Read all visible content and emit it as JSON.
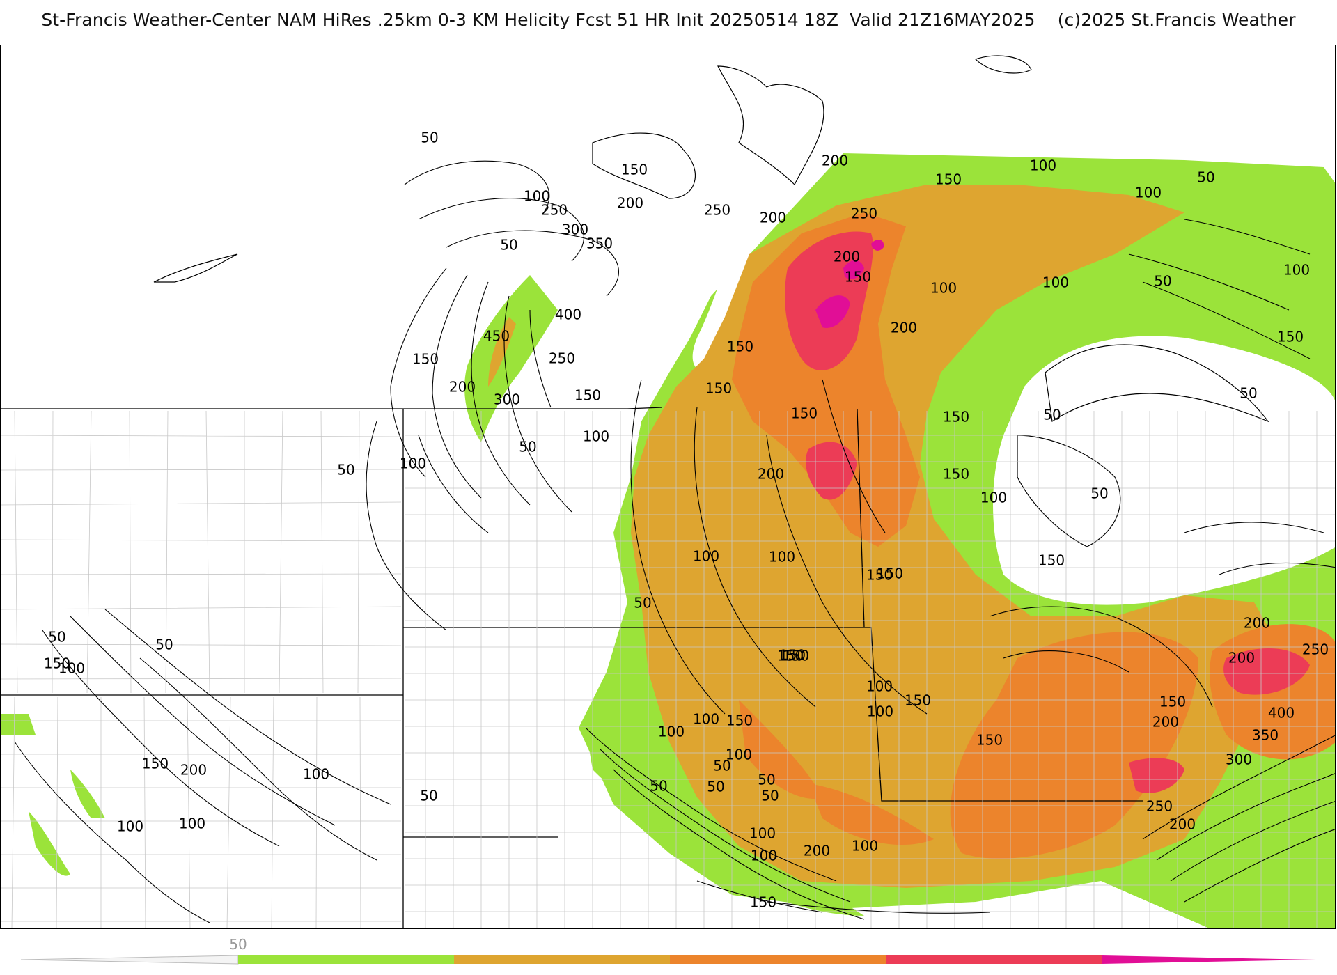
{
  "title": "St-Francis Weather-Center NAM HiRes .25km 0-3 KM Helicity Fcst 51 HR Init 20250514 18Z  Valid 21Z16MAY2025    (c)2025 St.Francis Weather",
  "colors": {
    "band_50_100": "#9be33a",
    "band_100_150": "#dea530",
    "band_150_200": "#ec842c",
    "band_200_250": "#ec3c56",
    "band_250_plus": "#e10e96",
    "contour": "#000000",
    "border": "#000000",
    "county": "#c8c8c8"
  },
  "legend": {
    "ticks": [
      "50"
    ],
    "bands": [
      "#9be33a",
      "#dea530",
      "#ec842c",
      "#ec3c56",
      "#e10e96"
    ]
  },
  "contour_labels": [
    "50",
    "150",
    "100",
    "200",
    "250",
    "300",
    "350",
    "50",
    "400",
    "450",
    "150",
    "250",
    "200",
    "300",
    "150",
    "100",
    "50",
    "50",
    "100",
    "200",
    "250",
    "200",
    "250",
    "200",
    "150",
    "200",
    "150",
    "150",
    "150",
    "200",
    "100",
    "150",
    "50",
    "100",
    "150",
    "100",
    "100",
    "50",
    "100",
    "150",
    "50",
    "50",
    "50",
    "150",
    "150",
    "150",
    "100",
    "100",
    "100",
    "150",
    "150",
    "50",
    "100",
    "150",
    "200",
    "200",
    "250",
    "400",
    "350",
    "300",
    "200",
    "250",
    "200",
    "150",
    "150",
    "100",
    "150",
    "150",
    "100",
    "150",
    "100",
    "100",
    "50",
    "50",
    "50",
    "50",
    "50",
    "100",
    "100",
    "50",
    "150",
    "100",
    "100",
    "100",
    "50",
    "50",
    "100",
    "150",
    "200",
    "200",
    "100",
    "150"
  ]
}
